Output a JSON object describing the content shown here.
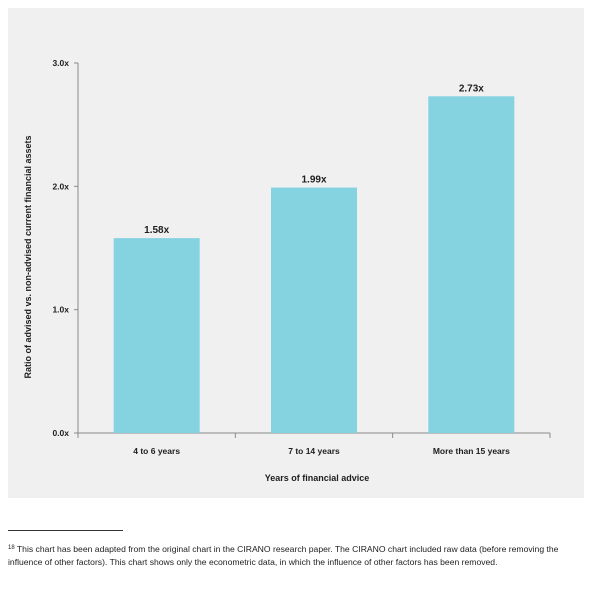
{
  "chart_data": {
    "type": "bar",
    "categories": [
      "4 to 6 years",
      "7 to 14 years",
      "More than 15 years"
    ],
    "values": [
      1.58,
      1.99,
      2.73
    ],
    "value_labels": [
      "1.58x",
      "1.99x",
      "2.73x"
    ],
    "xlabel": "Years of financial advice",
    "ylabel": "Ratio of advised vs. non-advised current financial assets",
    "ylim": [
      0,
      3
    ],
    "yticks": [
      0,
      1,
      2,
      3
    ],
    "ytick_labels": [
      "0.0x",
      "1.0x",
      "2.0x",
      "3.0x"
    ],
    "grid": false,
    "bar_color": "#85d3e0"
  },
  "footnote": {
    "number": "18",
    "text": "This chart has been adapted from the original chart in the CIRANO research paper. The CIRANO chart included raw data (before removing the influence of other factors). This chart shows only the econometric data, in which the influence of other factors has been removed."
  }
}
